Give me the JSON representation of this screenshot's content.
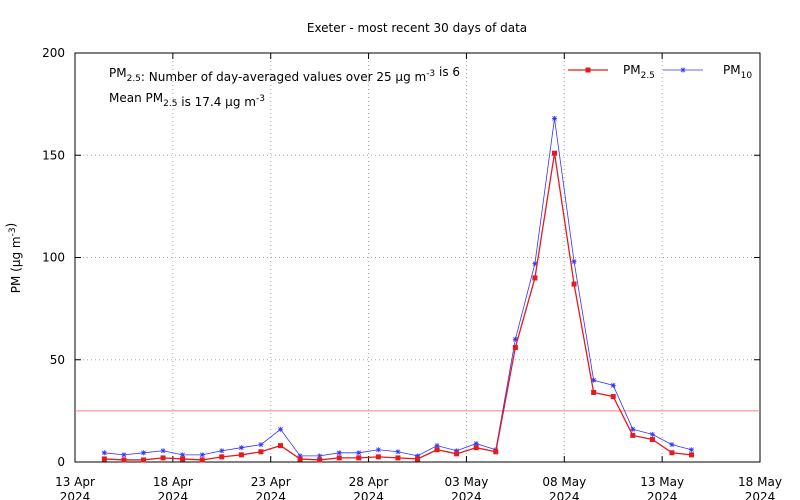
{
  "chart_data": {
    "type": "line",
    "title": "Exeter - most recent 30 days of data",
    "ylabel": [
      {
        "text": "PM (µg m"
      },
      {
        "text": "-3",
        "shift": "super"
      },
      {
        "text": ")"
      }
    ],
    "annotations": [
      [
        {
          "text": "PM"
        },
        {
          "text": "2.5",
          "shift": "sub"
        },
        {
          "text": ": Number of day-averaged values over 25 µg m"
        },
        {
          "text": "-3",
          "shift": "super"
        },
        {
          "text": " is 6"
        }
      ],
      [
        {
          "text": "Mean PM"
        },
        {
          "text": "2.5",
          "shift": "sub"
        },
        {
          "text": " is 17.4 µg m"
        },
        {
          "text": "-3",
          "shift": "super"
        }
      ]
    ],
    "threshold": {
      "value": 25,
      "color": "#f08080"
    },
    "x": [
      "2024-04-14",
      "2024-04-15",
      "2024-04-16",
      "2024-04-17",
      "2024-04-18",
      "2024-04-19",
      "2024-04-20",
      "2024-04-21",
      "2024-04-22",
      "2024-04-23",
      "2024-04-24",
      "2024-04-25",
      "2024-04-26",
      "2024-04-27",
      "2024-04-28",
      "2024-04-29",
      "2024-04-30",
      "2024-05-01",
      "2024-05-02",
      "2024-05-03",
      "2024-05-04",
      "2024-05-05",
      "2024-05-06",
      "2024-05-07",
      "2024-05-08",
      "2024-05-09",
      "2024-05-10",
      "2024-05-11",
      "2024-05-12",
      "2024-05-13",
      "2024-05-14"
    ],
    "series": [
      {
        "name": [
          {
            "text": "PM"
          },
          {
            "text": "2.5",
            "shift": "sub"
          }
        ],
        "color": "#e41a1c",
        "marker": "square",
        "values": [
          1.5,
          1,
          1,
          2,
          1.5,
          1,
          2.5,
          3.5,
          5,
          8,
          1.5,
          1,
          2,
          2,
          2.5,
          2,
          1.5,
          6,
          4,
          7,
          5,
          56,
          90,
          151,
          87,
          34,
          32,
          13,
          11,
          4.5,
          3.5
        ]
      },
      {
        "name": [
          {
            "text": "PM"
          },
          {
            "text": "10",
            "shift": "sub"
          }
        ],
        "color": "#3333ff",
        "marker": "star",
        "values": [
          4.5,
          3.5,
          4.5,
          5.5,
          3.5,
          3.5,
          5.5,
          7,
          8.5,
          16,
          3,
          3,
          4.5,
          4.5,
          6,
          5,
          3,
          8,
          5.5,
          9,
          6,
          60,
          97,
          168,
          98,
          40,
          37.5,
          16,
          13.5,
          8.5,
          6
        ]
      }
    ],
    "xlim": [
      "2024-04-13",
      "2024-05-18"
    ],
    "xticks": [
      {
        "value": "2024-04-13",
        "label": "13 Apr\n2024"
      },
      {
        "value": "2024-04-18",
        "label": "18 Apr\n2024"
      },
      {
        "value": "2024-04-23",
        "label": "23 Apr\n2024"
      },
      {
        "value": "2024-04-28",
        "label": "28 Apr\n2024"
      },
      {
        "value": "2024-05-03",
        "label": "03 May\n2024"
      },
      {
        "value": "2024-05-08",
        "label": "08 May\n2024"
      },
      {
        "value": "2024-05-13",
        "label": "13 May\n2024"
      },
      {
        "value": "2024-05-18",
        "label": "18 May\n2024"
      }
    ],
    "ylim": [
      0,
      200
    ],
    "yticks": [
      0,
      50,
      100,
      150,
      200
    ],
    "grid": true,
    "legend": "top-right"
  }
}
